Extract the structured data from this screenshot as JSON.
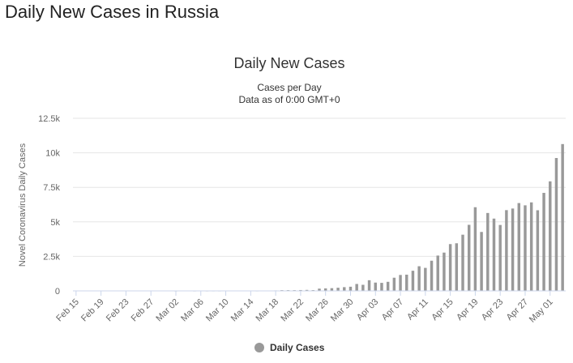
{
  "page_title": "Daily New Cases in Russia",
  "chart_data": {
    "type": "bar",
    "title": "Daily New Cases",
    "subtitle_lines": [
      "Cases per Day",
      "Data as of 0:00 GMT+0"
    ],
    "xlabel": "",
    "ylabel": "Novel Coronavirus Daily Cases",
    "ylim": [
      0,
      12500
    ],
    "y_ticks": [
      0,
      2500,
      5000,
      7500,
      10000,
      12500
    ],
    "y_tick_labels": [
      "0",
      "2.5k",
      "5k",
      "7.5k",
      "10k",
      "12.5k"
    ],
    "x_tick_labels": [
      "Feb 15",
      "Feb 19",
      "Feb 23",
      "Feb 27",
      "Mar 02",
      "Mar 06",
      "Mar 10",
      "Mar 14",
      "Mar 18",
      "Mar 22",
      "Mar 26",
      "Mar 30",
      "Apr 03",
      "Apr 07",
      "Apr 11",
      "Apr 15",
      "Apr 19",
      "Apr 23",
      "Apr 27",
      "May 01"
    ],
    "categories": [
      "Feb 15",
      "Feb 16",
      "Feb 17",
      "Feb 18",
      "Feb 19",
      "Feb 20",
      "Feb 21",
      "Feb 22",
      "Feb 23",
      "Feb 24",
      "Feb 25",
      "Feb 26",
      "Feb 27",
      "Feb 28",
      "Feb 29",
      "Mar 01",
      "Mar 02",
      "Mar 03",
      "Mar 04",
      "Mar 05",
      "Mar 06",
      "Mar 07",
      "Mar 08",
      "Mar 09",
      "Mar 10",
      "Mar 11",
      "Mar 12",
      "Mar 13",
      "Mar 14",
      "Mar 15",
      "Mar 16",
      "Mar 17",
      "Mar 18",
      "Mar 19",
      "Mar 20",
      "Mar 21",
      "Mar 22",
      "Mar 23",
      "Mar 24",
      "Mar 25",
      "Mar 26",
      "Mar 27",
      "Mar 28",
      "Mar 29",
      "Mar 30",
      "Mar 31",
      "Apr 01",
      "Apr 02",
      "Apr 03",
      "Apr 04",
      "Apr 05",
      "Apr 06",
      "Apr 07",
      "Apr 08",
      "Apr 09",
      "Apr 10",
      "Apr 11",
      "Apr 12",
      "Apr 13",
      "Apr 14",
      "Apr 15",
      "Apr 16",
      "Apr 17",
      "Apr 18",
      "Apr 19",
      "Apr 20",
      "Apr 21",
      "Apr 22",
      "Apr 23",
      "Apr 24",
      "Apr 25",
      "Apr 26",
      "Apr 27",
      "Apr 28",
      "Apr 29",
      "Apr 30",
      "May 01",
      "May 02",
      "May 03"
    ],
    "series": [
      {
        "name": "Daily Cases",
        "color": "#999999",
        "values": [
          0,
          0,
          0,
          0,
          0,
          0,
          0,
          0,
          0,
          0,
          0,
          0,
          0,
          0,
          0,
          0,
          1,
          0,
          0,
          1,
          6,
          1,
          3,
          3,
          0,
          8,
          8,
          6,
          11,
          3,
          29,
          21,
          33,
          52,
          54,
          53,
          61,
          71,
          57,
          163,
          182,
          196,
          228,
          270,
          302,
          501,
          440,
          771,
          601,
          582,
          658,
          954,
          1154,
          1175,
          1459,
          1786,
          1667,
          2186,
          2558,
          2774,
          3388,
          3448,
          4070,
          4785,
          6060,
          4268,
          5642,
          5236,
          4774,
          5849,
          5966,
          6361,
          6198,
          6411,
          5841,
          7099,
          7933,
          9623,
          10633
        ]
      }
    ],
    "legend": {
      "position": "bottom-center",
      "marker": "circle"
    },
    "grid": true
  }
}
